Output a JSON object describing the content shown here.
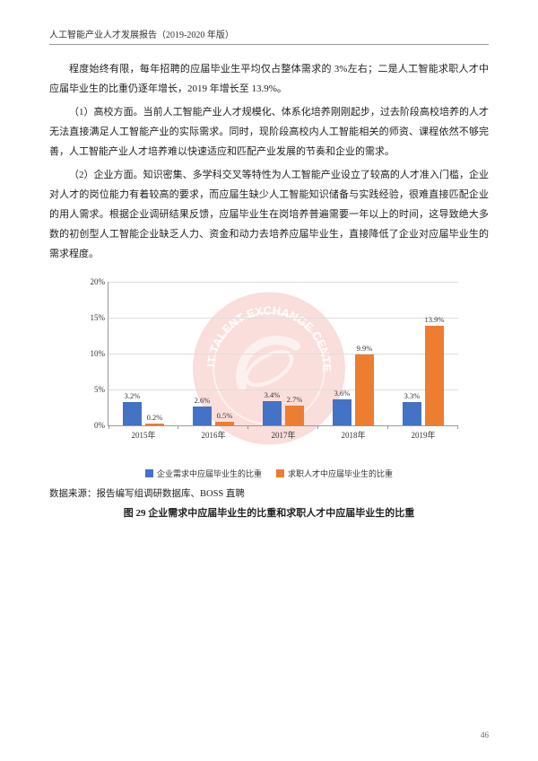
{
  "header": "人工智能产业人才发展报告（2019-2020 年版）",
  "paragraphs": {
    "p1": "程度始终有限，每年招聘的应届毕业生平均仅占整体需求的 3%左右；二是人工智能求职人才中应届毕业生的比重仍逐年增长，2019 年增长至 13.9%。",
    "p2": "（1）高校方面。当前人工智能产业人才规模化、体系化培养刚刚起步，过去阶段高校培养的人才无法直接满足人工智能产业的实际需求。同时，现阶段高校内人工智能相关的师资、课程依然不够完善，人工智能产业人才培养难以快速适应和匹配产业发展的节奏和企业的需求。",
    "p3": "（2）企业方面。知识密集、多学科交叉等特性为人工智能产业设立了较高的人才准入门槛，企业对人才的岗位能力有着较高的要求，而应届生缺少人工智能知识储备与实践经验，很难直接匹配企业的用人需求。根据企业调研结果反馈，应届毕业生在岗培养普遍需要一年以上的时间，这导致绝大多数的初创型人工智能企业缺乏人力、资金和动力去培养应届毕业生，直接降低了企业对应届毕业生的需求程度。"
  },
  "chart": {
    "type": "bar",
    "ylim": [
      0,
      20
    ],
    "ytick_step": 5,
    "y_suffix": "%",
    "categories": [
      "2015年",
      "2016年",
      "2017年",
      "2018年",
      "2019年"
    ],
    "series": [
      {
        "name": "企业需求中应届毕业生的比重",
        "color": "#4472c4",
        "values": [
          3.2,
          2.6,
          3.4,
          3.6,
          3.3
        ]
      },
      {
        "name": "求职人才中应届毕业生的比重",
        "color": "#ed7d31",
        "values": [
          0.2,
          0.5,
          2.7,
          9.9,
          13.9
        ]
      }
    ],
    "grid_color": "#dddddd",
    "axis_color": "#999999",
    "label_fontsize": 9
  },
  "source": "数据来源：报告编写组调研数据库、BOSS 直聘",
  "figure_caption": "图 29  企业需求中应届毕业生的比重和求职人才中应届毕业生的比重",
  "page_number": "46",
  "watermark_text": "MIIT TALENT EXCHANGE CENTER"
}
